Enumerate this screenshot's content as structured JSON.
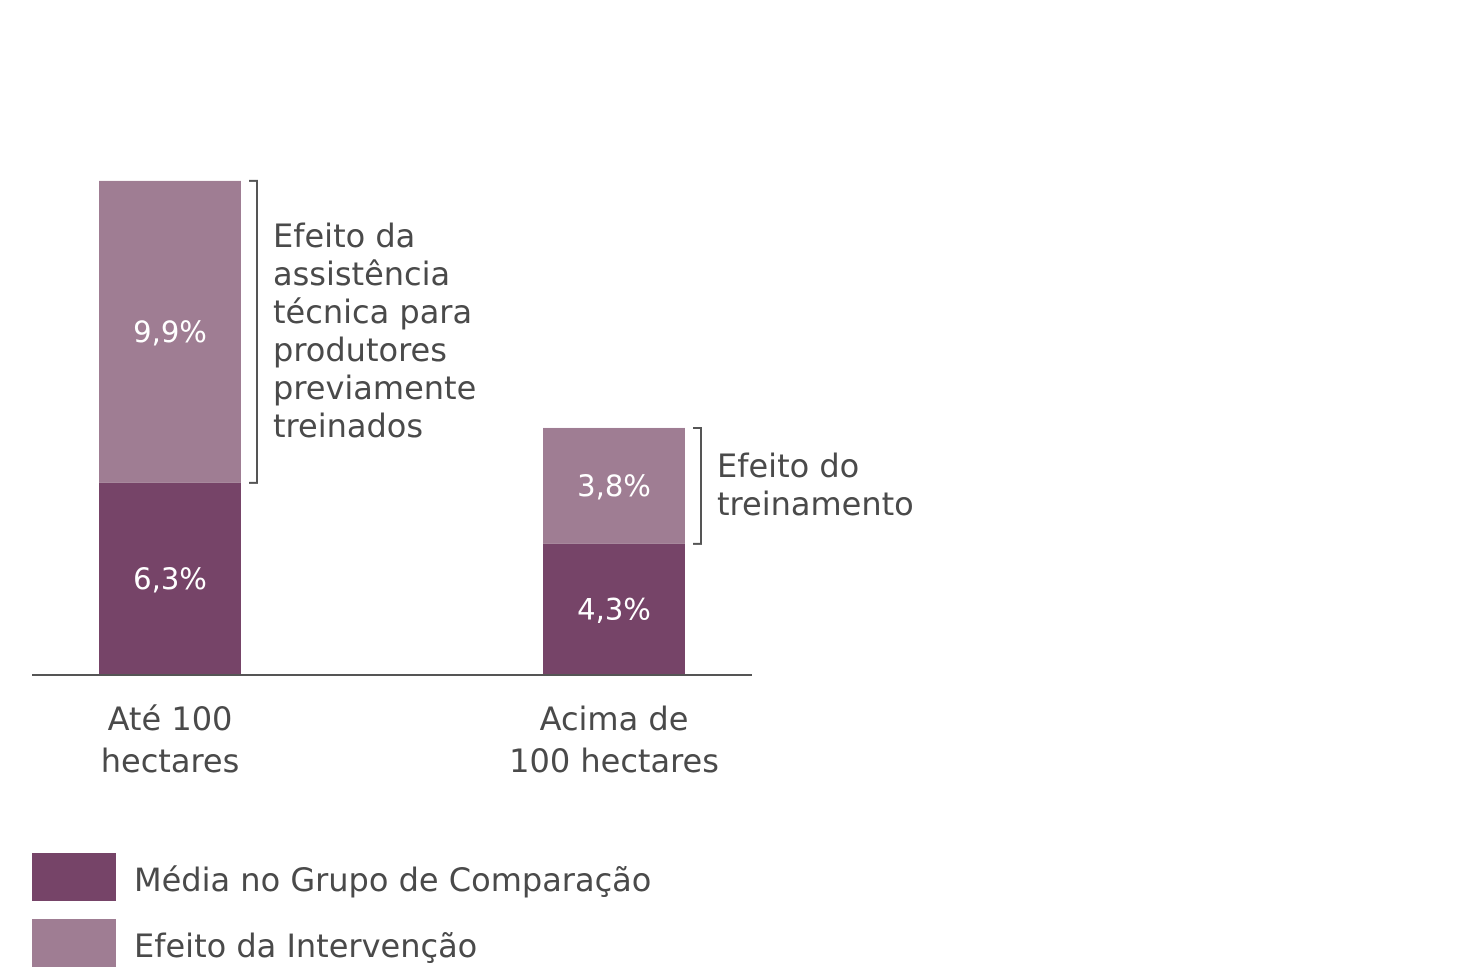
{
  "colors": {
    "base": "#764468",
    "effect": "#9f7d93",
    "axis": "#555555",
    "text": "#4a4a4a",
    "bracket": "#555555",
    "segment_text": "#ffffff"
  },
  "chart_data": {
    "type": "bar",
    "stacked": true,
    "categories": [
      [
        "Até 100",
        "hectares"
      ],
      [
        "Acima de",
        "100 hectares"
      ]
    ],
    "series": [
      {
        "name": "Média no Grupo de Comparação",
        "values": [
          6.3,
          4.3
        ],
        "labels": [
          "6,3%",
          "4,3%"
        ],
        "color": "#764468"
      },
      {
        "name": "Efeito da Intervenção",
        "values": [
          9.9,
          3.8
        ],
        "labels": [
          "9,9%",
          "3,8%"
        ],
        "color": "#9f7d93"
      }
    ],
    "annotations": [
      {
        "category_index": 0,
        "lines": [
          "Efeito da",
          "assistência",
          "técnica para",
          "produtores",
          "previamente",
          "treinados"
        ]
      },
      {
        "category_index": 1,
        "lines": [
          "Efeito do",
          "treinamento"
        ]
      }
    ],
    "legend": {
      "placement": "bottom-left",
      "items": [
        "Média no Grupo de Comparação",
        "Efeito da Intervenção"
      ]
    },
    "ylim": [
      0,
      16.2
    ],
    "grid": false,
    "yaxis_visible": false
  }
}
